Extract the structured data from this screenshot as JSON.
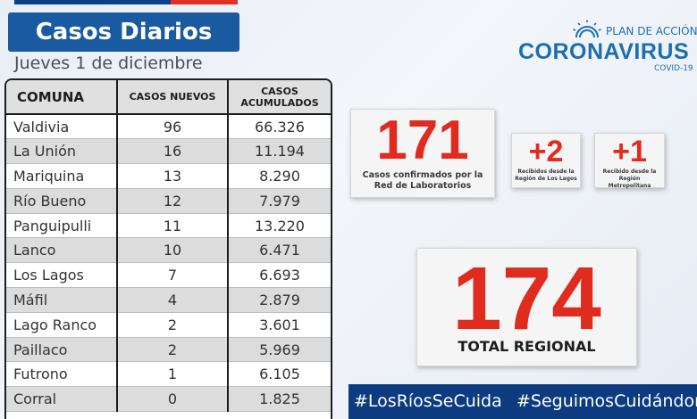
{
  "header": {
    "title": "Casos Diarios",
    "date": "Jueves 1 de diciembre"
  },
  "table": {
    "columns": [
      "COMUNA",
      "CASOS NUEVOS",
      "CASOS ACUMULADOS"
    ],
    "rows": [
      {
        "comuna": "Valdivia",
        "nuevos": "96",
        "acumulados": "66.326"
      },
      {
        "comuna": "La Unión",
        "nuevos": "16",
        "acumulados": "11.194"
      },
      {
        "comuna": "Mariquina",
        "nuevos": "13",
        "acumulados": "8.290"
      },
      {
        "comuna": "Río Bueno",
        "nuevos": "12",
        "acumulados": "7.979"
      },
      {
        "comuna": "Panguipulli",
        "nuevos": "11",
        "acumulados": "13.220"
      },
      {
        "comuna": "Lanco",
        "nuevos": "10",
        "acumulados": "6.471"
      },
      {
        "comuna": "Los Lagos",
        "nuevos": "7",
        "acumulados": "6.693"
      },
      {
        "comuna": "Máfil",
        "nuevos": "4",
        "acumulados": "2.879"
      },
      {
        "comuna": "Lago Ranco",
        "nuevos": "2",
        "acumulados": "3.601"
      },
      {
        "comuna": "Paillaco",
        "nuevos": "2",
        "acumulados": "5.969"
      },
      {
        "comuna": "Futrono",
        "nuevos": "1",
        "acumulados": "6.105"
      },
      {
        "comuna": "Corral",
        "nuevos": "0",
        "acumulados": "1.825"
      }
    ]
  },
  "logo": {
    "plan": "PLAN DE ACCIÓN",
    "name": "CORONAVIRUS",
    "sub": "COVID-19"
  },
  "stats": {
    "lab_value": "171",
    "lab_label": "Casos confirmados por la Red de Laboratorios",
    "los_lagos_value": "+2",
    "los_lagos_label": "Recibidos desde la Región de Los Lagos",
    "metropolitana_value": "+1",
    "metropolitana_label": "Recibido desde la Región Metropolitana",
    "total_value": "174",
    "total_label": "TOTAL REGIONAL"
  },
  "hashtags": {
    "first": "#LosRíosSeCuida",
    "second": "#SeguimosCuidándonos"
  },
  "colors": {
    "brand_blue": "#1a5aa0",
    "accent_red": "#e02b1f",
    "footer_navy": "#0c3b80"
  }
}
